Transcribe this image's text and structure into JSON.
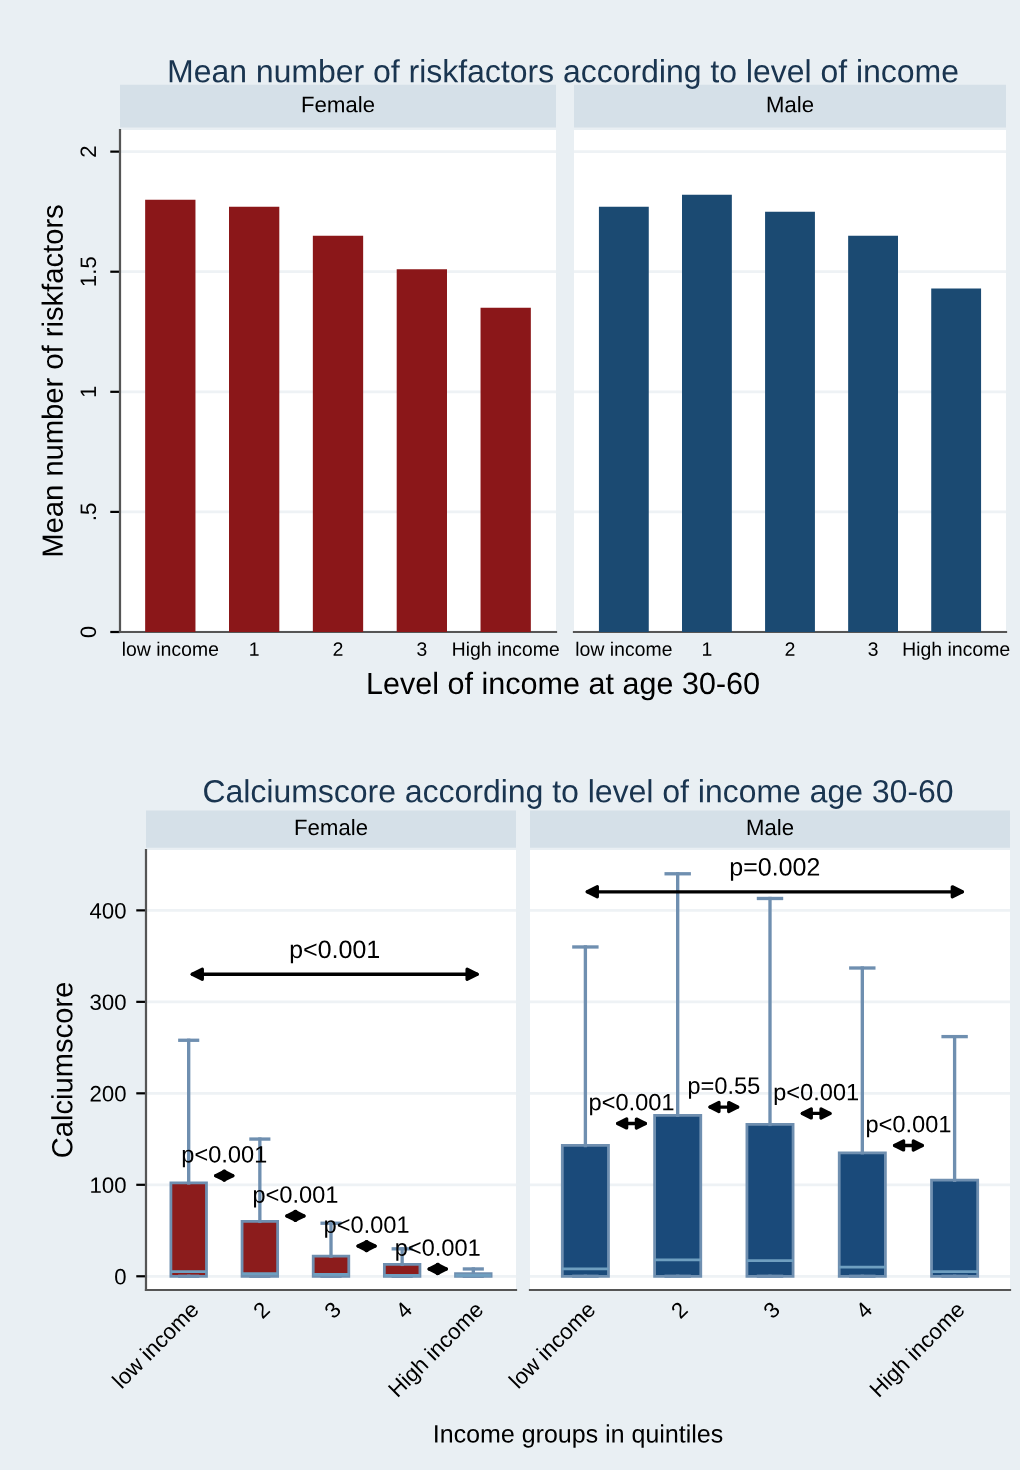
{
  "chart_data": [
    {
      "type": "bar",
      "title": "Mean number of riskfactors according to level of income",
      "subtitle": "Female",
      "xlabel": "Level of income at age 30-60",
      "ylabel": "Mean number of riskfactors",
      "categories": [
        "low income",
        "1",
        "2",
        "3",
        "High income"
      ],
      "series": [
        {
          "color": "#8b1719",
          "values": [
            1.8,
            1.77,
            1.65,
            1.51,
            1.35
          ]
        }
      ],
      "ylim": [
        0,
        2.09
      ],
      "yticks": [
        0,
        {
          "value": 0.5,
          "label": ".5"
        },
        1,
        1.5,
        2
      ],
      "grid": "y"
    },
    {
      "type": "bar",
      "subtitle": "Male",
      "categories": [
        "low income",
        "1",
        "2",
        "3",
        "High income"
      ],
      "series": [
        {
          "color": "#1b4a72",
          "values": [
            1.77,
            1.82,
            1.75,
            1.65,
            1.43
          ]
        }
      ],
      "ylim": [
        0,
        2.09
      ],
      "yticks": [
        0,
        0.5,
        1,
        1.5,
        2
      ],
      "grid": "y",
      "tick_labels": "x"
    },
    {
      "type": "box",
      "title": "Calciumscore according to level of income age 30-60",
      "subtitle": "Female",
      "xlabel": "Income groups in quintiles",
      "ylabel": "Calciumscore",
      "categories": [
        "low income",
        "2",
        "3",
        "4",
        "High income"
      ],
      "series": [
        {
          "color": "#8c1c1c",
          "boxes": [
            {
              "low": 0,
              "q1": 0,
              "median": 5,
              "q3": 102,
              "high": 258
            },
            {
              "low": 0,
              "q1": 0,
              "median": 3,
              "q3": 60,
              "high": 150
            },
            {
              "low": 0,
              "q1": 0,
              "median": 2,
              "q3": 22,
              "high": 58
            },
            {
              "low": 0,
              "q1": 0,
              "median": 1,
              "q3": 13,
              "high": 30
            },
            {
              "low": 0,
              "q1": 0,
              "median": 1,
              "q3": 3,
              "high": 8
            }
          ]
        }
      ],
      "annotations": [
        "p<0.001",
        {
          "text": "p<0.001",
          "x": "low income",
          "y": 110
        },
        {
          "text": "p<0.001",
          "x": "2",
          "y": 66
        },
        {
          "text": "p<0.001",
          "x": "3",
          "y": 33
        },
        {
          "text": "p<0.001",
          "x": "4",
          "y": 8
        }
      ],
      "ylim": [
        -15,
        466
      ],
      "yticks": [
        0,
        100,
        200,
        300,
        400
      ],
      "grid": "y"
    },
    {
      "type": "box",
      "subtitle": "Male",
      "categories": [
        "low income",
        "2",
        "3",
        "4",
        "High income"
      ],
      "series": [
        {
          "color": "#1a4a7a",
          "boxes": [
            {
              "low": 0,
              "q1": 0,
              "median": 8,
              "q3": 143,
              "high": 360
            },
            {
              "low": 0,
              "q1": 0,
              "median": 18,
              "q3": 176,
              "high": 440
            },
            {
              "low": 0,
              "q1": 0,
              "median": 17,
              "q3": 166,
              "high": 413
            },
            {
              "low": 0,
              "q1": 0,
              "median": 10,
              "q3": 135,
              "high": 337
            },
            {
              "low": 0,
              "q1": 0,
              "median": 5,
              "q3": 105,
              "high": 262
            }
          ]
        }
      ],
      "annotations": [
        "p=0.002",
        {
          "text": "p<0.001",
          "x": "low income",
          "y": 167
        },
        {
          "text": "p=0.55",
          "x": "2",
          "y": 185
        },
        {
          "text": "p<0.001",
          "x": "3",
          "y": 178
        },
        {
          "text": "p<0.001",
          "x": "4",
          "y": 143
        }
      ],
      "ylim": [
        -15,
        466
      ],
      "yticks": [
        0,
        100,
        200,
        300,
        400
      ],
      "grid": "y",
      "tick_labels": "x"
    }
  ]
}
